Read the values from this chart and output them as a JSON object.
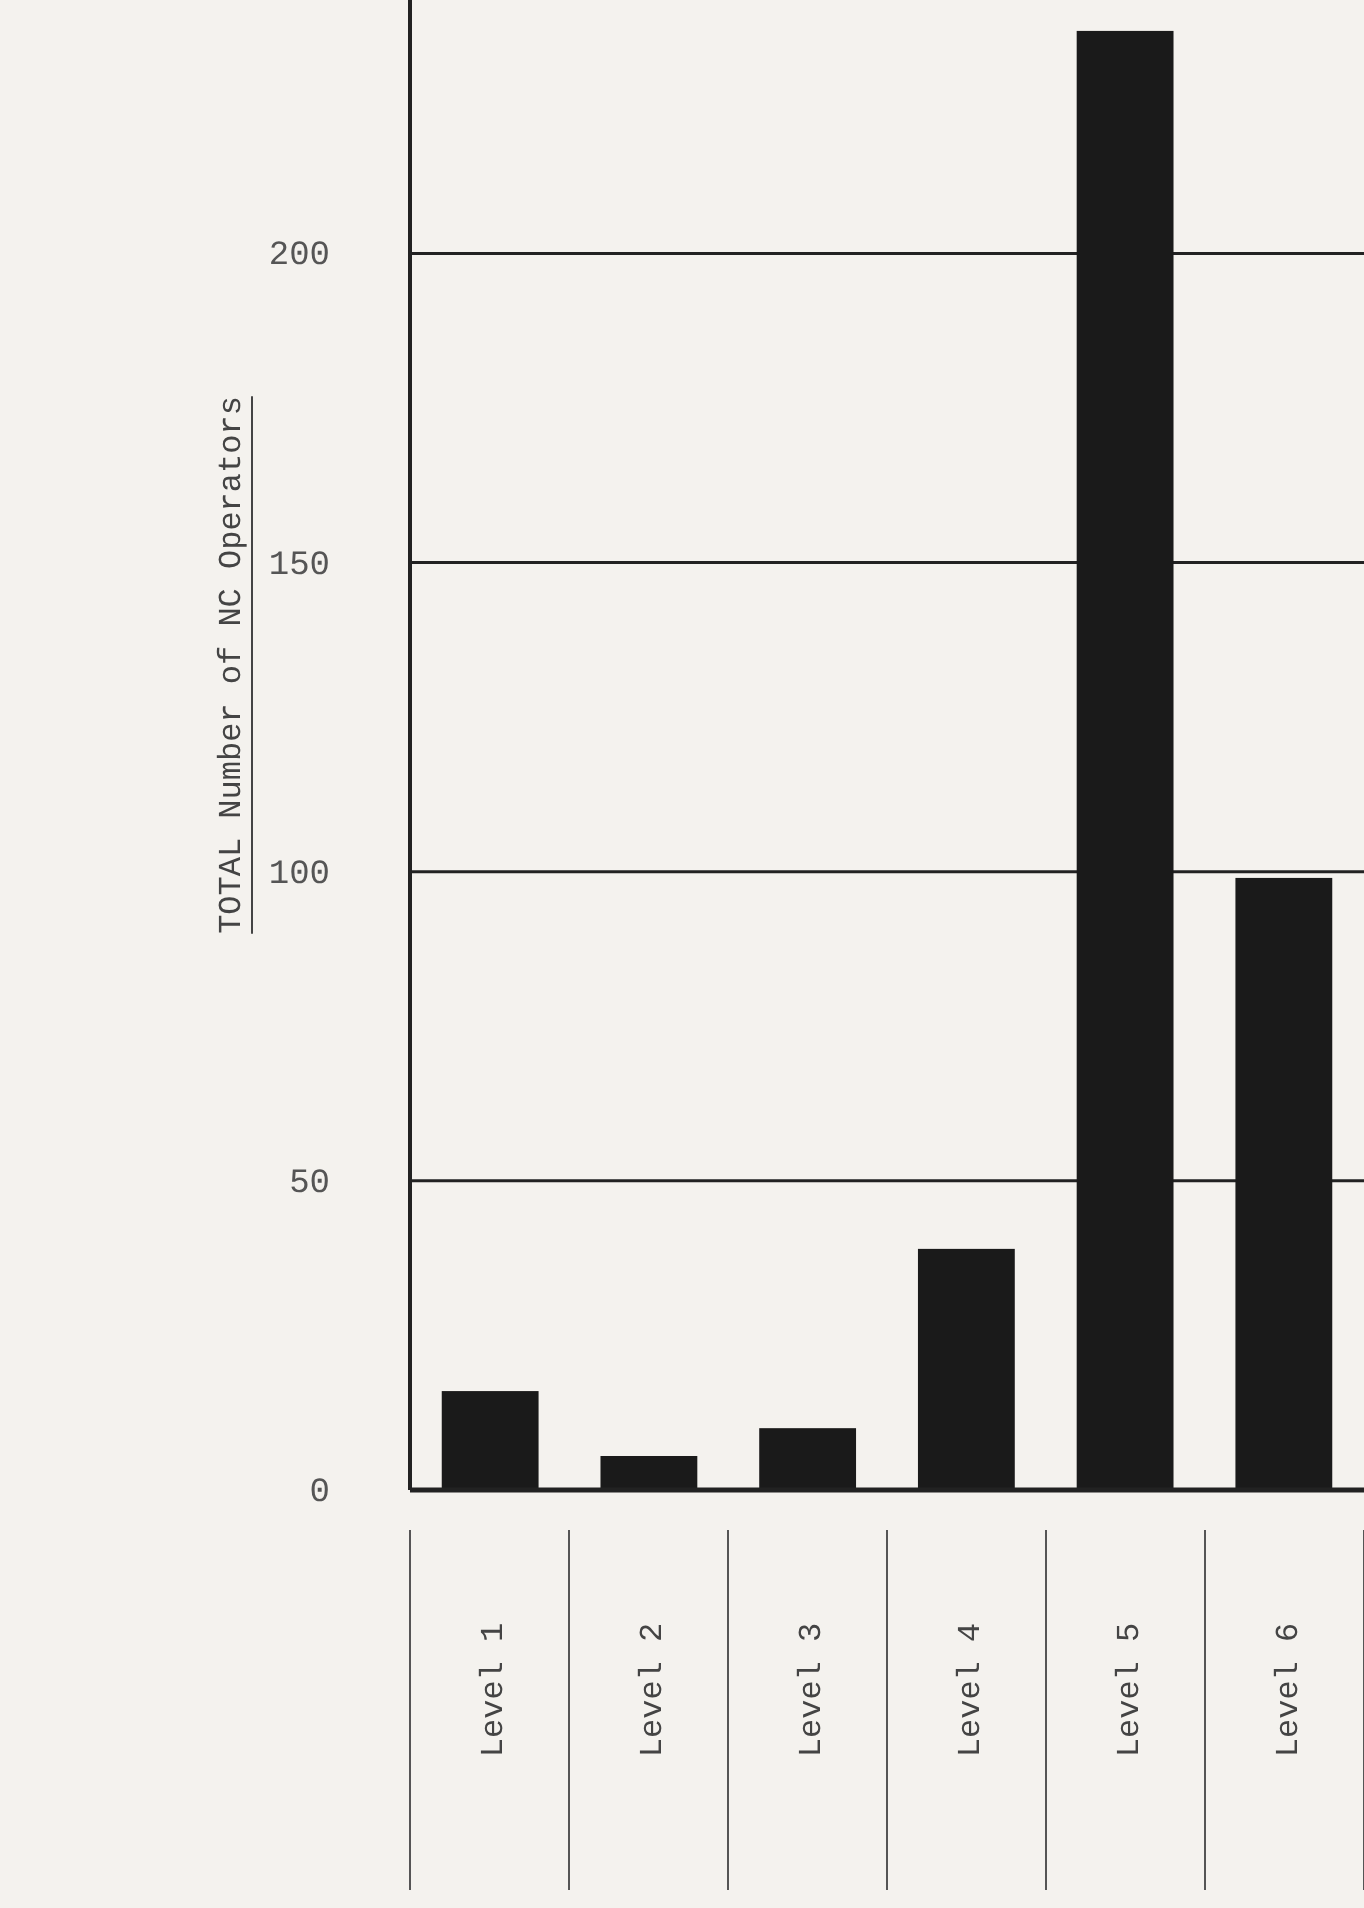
{
  "chart_data": {
    "type": "bar",
    "ylabel": "TOTAL Number of NC Operators",
    "categories": [
      "Level 1",
      "Level 2",
      "Level 3",
      "Level 4",
      "Level 5",
      "Level 6"
    ],
    "values": [
      16,
      5.5,
      10,
      39,
      236,
      99
    ],
    "color": "#1a1a1a",
    "ylim": [
      0,
      241
    ],
    "yticks": [
      0,
      50,
      100,
      150,
      200
    ],
    "grid": "y"
  }
}
